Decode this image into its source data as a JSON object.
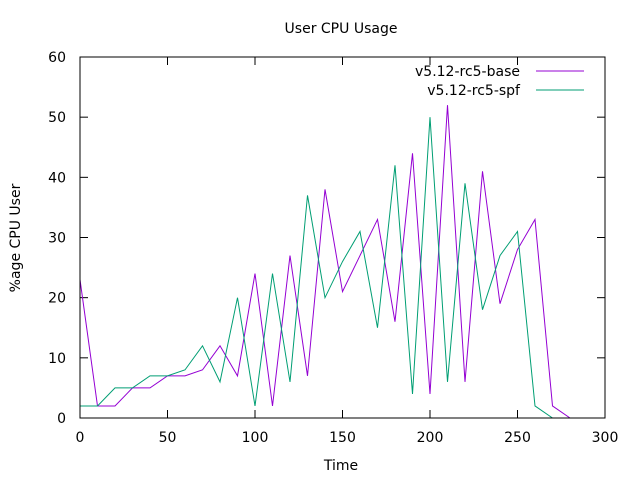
{
  "chart_data": {
    "type": "line",
    "title": "User CPU Usage",
    "xlabel": "Time",
    "ylabel": "%age CPU User",
    "xlim": [
      0,
      300
    ],
    "ylim": [
      0,
      60
    ],
    "xticks": [
      0,
      50,
      100,
      150,
      200,
      250,
      300
    ],
    "yticks": [
      0,
      10,
      20,
      30,
      40,
      50,
      60
    ],
    "grid": false,
    "legend_position": "top-right",
    "series": [
      {
        "name": "v5.12-rc5-base",
        "color": "#9400d3",
        "x": [
          0,
          10,
          20,
          30,
          40,
          50,
          60,
          70,
          80,
          90,
          100,
          110,
          120,
          130,
          140,
          150,
          160,
          170,
          180,
          190,
          200,
          210,
          220,
          230,
          240,
          250,
          260,
          270,
          280
        ],
        "y": [
          23,
          2,
          2,
          5,
          5,
          7,
          7,
          8,
          12,
          7,
          24,
          2,
          27,
          7,
          38,
          21,
          27,
          33,
          16,
          44,
          4,
          52,
          6,
          41,
          19,
          28,
          33,
          2,
          0
        ]
      },
      {
        "name": "v5.12-rc5-spf",
        "color": "#009e73",
        "x": [
          0,
          10,
          20,
          30,
          40,
          50,
          60,
          70,
          80,
          90,
          100,
          110,
          120,
          130,
          140,
          150,
          160,
          170,
          180,
          190,
          200,
          210,
          220,
          230,
          240,
          250,
          260,
          270
        ],
        "y": [
          2,
          2,
          5,
          5,
          7,
          7,
          8,
          12,
          6,
          20,
          2,
          24,
          6,
          37,
          20,
          26,
          31,
          15,
          42,
          4,
          50,
          6,
          39,
          18,
          27,
          31,
          2,
          0
        ]
      }
    ]
  }
}
